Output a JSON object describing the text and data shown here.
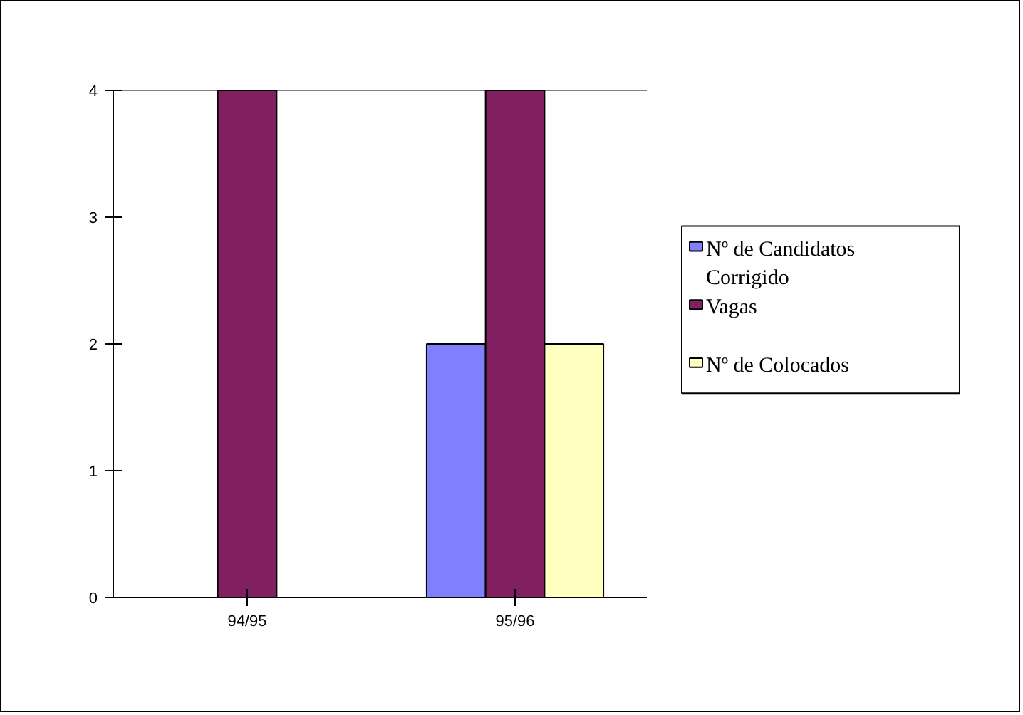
{
  "chart_data": {
    "type": "bar",
    "categories": [
      "94/95",
      "95/96"
    ],
    "series": [
      {
        "name": "Nº de Candidatos Corrigido",
        "color": "#8080ff",
        "values": [
          null,
          2
        ]
      },
      {
        "name": "Vagas",
        "color": "#802060",
        "values": [
          4,
          4
        ]
      },
      {
        "name": "Nº de Colocados",
        "color": "#ffffc0",
        "values": [
          null,
          2
        ]
      }
    ],
    "ylim": [
      0,
      4
    ],
    "yticks": [
      0,
      1,
      2,
      3,
      4
    ],
    "grid": false,
    "legend": "right"
  }
}
